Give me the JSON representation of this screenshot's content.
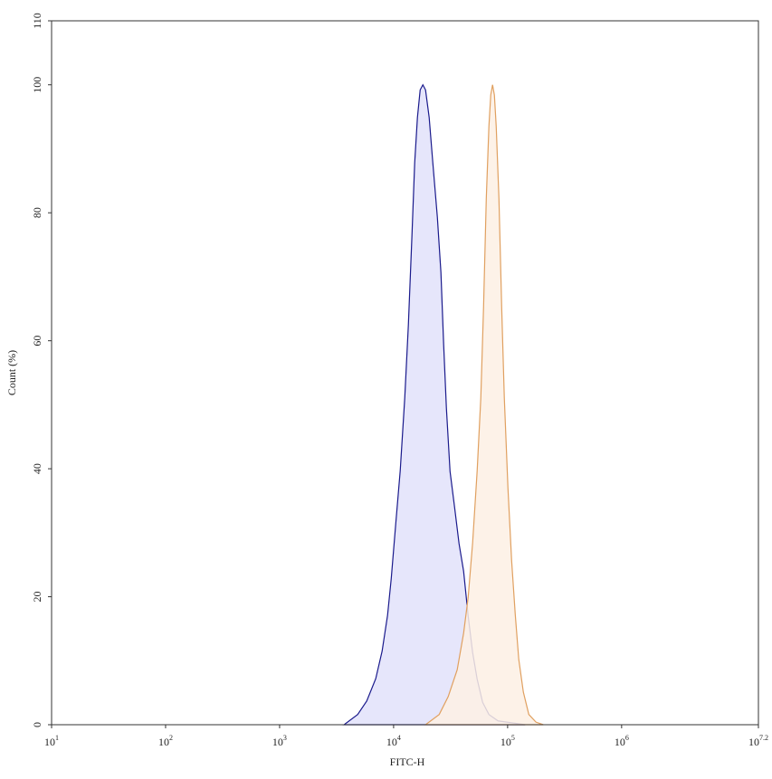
{
  "chart_data": {
    "type": "histogram-area",
    "xlabel": "FITC-H",
    "ylabel": "Count (%)",
    "xscale": "log",
    "xlim": [
      10,
      15848931.9
    ],
    "xticks": [
      {
        "value": 10,
        "label": "10",
        "exponent": "1"
      },
      {
        "value": 100,
        "label": "10",
        "exponent": "2"
      },
      {
        "value": 1000,
        "label": "10",
        "exponent": "3"
      },
      {
        "value": 10000,
        "label": "10",
        "exponent": "4"
      },
      {
        "value": 100000,
        "label": "10",
        "exponent": "5"
      },
      {
        "value": 1000000,
        "label": "10",
        "exponent": "6"
      },
      {
        "value": 15848931.9,
        "label": "10",
        "exponent": "7.2"
      }
    ],
    "ylim": [
      0,
      110
    ],
    "yticks": [
      0,
      20,
      40,
      60,
      80,
      100,
      110
    ],
    "series": [
      {
        "color": "#1a1a8c",
        "fill": "#e2e2fa",
        "x": [
          3680,
          4840,
          5810,
          6970,
          7930,
          8850,
          9530,
          10430,
          11430,
          12530,
          13470,
          14490,
          15310,
          16180,
          17100,
          18060,
          19060,
          20510,
          22080,
          24200,
          26000,
          27480,
          29040,
          31260,
          34260,
          37500,
          41110,
          45080,
          49320,
          54080,
          60390,
          68550,
          82410,
          108400,
          142600
        ],
        "values": [
          0,
          1.6,
          3.7,
          7.2,
          11.5,
          17.1,
          22.8,
          31.3,
          39.7,
          51.1,
          62.4,
          76.5,
          87.8,
          94.9,
          99.2,
          100,
          99.2,
          94.9,
          87.8,
          79.3,
          70.7,
          59.4,
          49.5,
          39.6,
          34.0,
          28.3,
          24.0,
          17.0,
          11.3,
          7.1,
          3.5,
          1.6,
          0.6,
          0.3,
          0
        ]
      },
      {
        "color": "#e0a060",
        "fill": "#fdf0e4",
        "x": [
          19060,
          25120,
          30130,
          36140,
          41110,
          45080,
          49320,
          54080,
          58210,
          61500,
          65000,
          68550,
          71120,
          73790,
          76560,
          79430,
          83950,
          88720,
          93540,
          100700,
          108400,
          116700,
          125300,
          137400,
          153500,
          177400,
          205600
        ],
        "values": [
          0,
          1.6,
          4.4,
          8.6,
          14.3,
          19.9,
          28.4,
          39.7,
          51.1,
          65.2,
          82.2,
          93.5,
          98.4,
          100,
          98.4,
          93.5,
          82.2,
          65.2,
          51.1,
          37.0,
          25.7,
          17.2,
          10.2,
          5.1,
          1.6,
          0.4,
          0
        ]
      }
    ]
  }
}
